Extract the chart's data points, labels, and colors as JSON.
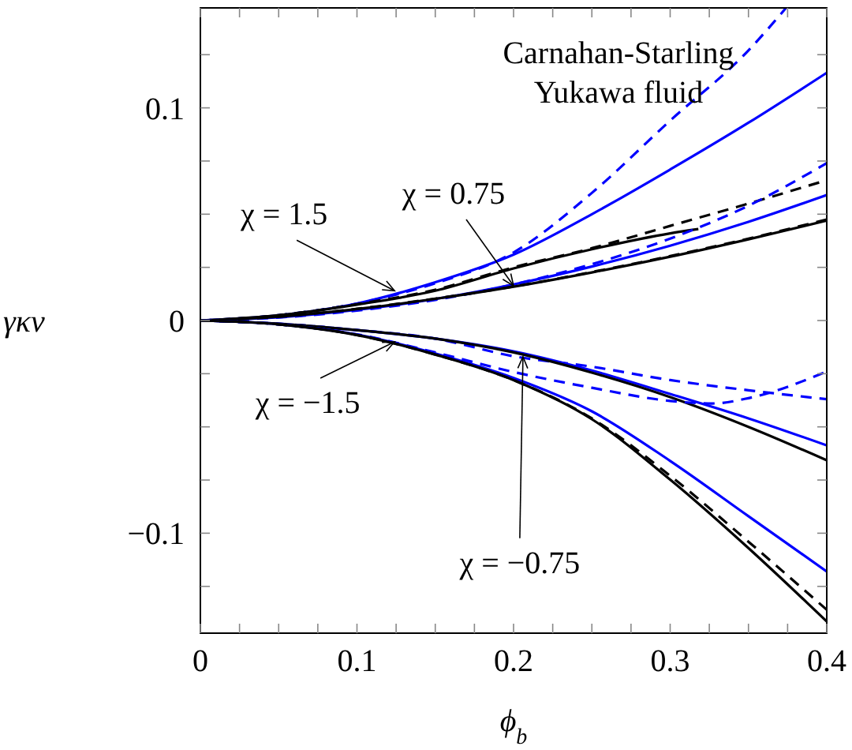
{
  "chart_data": {
    "type": "line",
    "title": "Carnahan-Starling Yukawa fluid",
    "xlabel": "ϕ$_{b}$",
    "ylabel": "γκv",
    "x": [
      0,
      0.05,
      0.1,
      0.15,
      0.2,
      0.25,
      0.3,
      0.35,
      0.4
    ],
    "xlim": [
      0,
      0.4
    ],
    "ylim": [
      -0.147,
      0.147
    ],
    "xticks": [
      0,
      {
        "value": 0.025,
        "label": null
      },
      {
        "value": 0.05,
        "label": null
      },
      {
        "value": 0.075,
        "label": null
      },
      0.1,
      {
        "value": 0.125,
        "label": null
      },
      {
        "value": 0.15,
        "label": null
      },
      {
        "value": 0.175,
        "label": null
      },
      0.2,
      {
        "value": 0.225,
        "label": null
      },
      {
        "value": 0.25,
        "label": null
      },
      {
        "value": 0.275,
        "label": null
      },
      0.3,
      {
        "value": 0.325,
        "label": null
      },
      {
        "value": 0.35,
        "label": null
      },
      {
        "value": 0.375,
        "label": null
      },
      0.4
    ],
    "yticks": [
      {
        "value": -0.125,
        "label": null
      },
      {
        "value": -0.1,
        "label": "−0.1"
      },
      {
        "value": -0.075,
        "label": null
      },
      {
        "value": -0.05,
        "label": null
      },
      {
        "value": -0.025,
        "label": null
      },
      0,
      {
        "value": 0.025,
        "label": null
      },
      {
        "value": 0.05,
        "label": null
      },
      {
        "value": 0.075,
        "label": null
      },
      0.1,
      {
        "value": 0.125,
        "label": null
      }
    ],
    "grid": false,
    "marker": "none",
    "series": [
      {
        "color": "#0000ff",
        "line_style": "dashed",
        "x": [
          0,
          0.05,
          0.1,
          0.15,
          0.2,
          0.25,
          0.3,
          0.35,
          0.374
        ],
        "values": [
          0,
          0.0025,
          0.008,
          0.0175,
          0.032,
          0.06,
          0.094,
          0.127,
          0.147
        ]
      },
      {
        "color": "#0000ff",
        "line_style": "solid",
        "values": [
          0,
          0.0025,
          0.008,
          0.018,
          0.031,
          0.05,
          0.071,
          0.093,
          0.1165
        ]
      },
      {
        "color": "#000000",
        "line_style": "dashed",
        "values": [
          0,
          0.0025,
          0.0077,
          0.0145,
          0.025,
          0.034,
          0.0445,
          0.055,
          0.066
        ]
      },
      {
        "color": "#000000",
        "line_style": "solid",
        "x": [
          0,
          0.05,
          0.1,
          0.15,
          0.2,
          0.25,
          0.3,
          0.318
        ],
        "values": [
          0,
          0.0025,
          0.0075,
          0.014,
          0.0245,
          0.0335,
          0.041,
          0.043
        ]
      },
      {
        "color": "#0000ff",
        "line_style": "dashed",
        "values": [
          0,
          0.0014,
          0.0047,
          0.0097,
          0.017,
          0.0265,
          0.0385,
          0.054,
          0.074
        ]
      },
      {
        "color": "#0000ff",
        "line_style": "solid",
        "values": [
          0,
          0.0015,
          0.005,
          0.0101,
          0.017,
          0.0254,
          0.0352,
          0.0464,
          0.059
        ]
      },
      {
        "color": "#000000",
        "line_style": "dashed",
        "values": [
          0,
          0.0018,
          0.0055,
          0.0103,
          0.016,
          0.0228,
          0.0303,
          0.0385,
          0.0475
        ]
      },
      {
        "color": "#000000",
        "line_style": "solid",
        "values": [
          0,
          0.0018,
          0.0054,
          0.0102,
          0.0159,
          0.0226,
          0.03,
          0.0382,
          0.047
        ]
      },
      {
        "color": "#0000ff",
        "line_style": "dashed",
        "values": [
          0,
          -0.0015,
          -0.0045,
          -0.0085,
          -0.0168,
          -0.0217,
          -0.028,
          -0.0328,
          -0.037
        ]
      },
      {
        "color": "#0000ff",
        "line_style": "solid",
        "values": [
          0,
          -0.0015,
          -0.0045,
          -0.0085,
          -0.0145,
          -0.0235,
          -0.0345,
          -0.046,
          -0.0587
        ]
      },
      {
        "color": "#000000",
        "line_style": "solid",
        "values": [
          0,
          -0.0015,
          -0.0045,
          -0.0085,
          -0.015,
          -0.0245,
          -0.036,
          -0.05,
          -0.0657
        ]
      },
      {
        "color": "#0000ff",
        "line_style": "dashed",
        "x": [
          0,
          0.05,
          0.1,
          0.15,
          0.2,
          0.25,
          0.3,
          0.327,
          0.35,
          0.4
        ],
        "values": [
          0,
          -0.0018,
          -0.0065,
          -0.015,
          -0.0242,
          -0.0316,
          -0.0378,
          -0.039,
          -0.0365,
          -0.024
        ]
      },
      {
        "color": "#0000ff",
        "line_style": "solid",
        "values": [
          0,
          -0.0018,
          -0.0066,
          -0.0155,
          -0.027,
          -0.0427,
          -0.066,
          -0.092,
          -0.118
        ]
      },
      {
        "color": "#000000",
        "line_style": "dashed",
        "values": [
          0,
          -0.0018,
          -0.0068,
          -0.016,
          -0.028,
          -0.046,
          -0.073,
          -0.104,
          -0.136
        ]
      },
      {
        "color": "#000000",
        "line_style": "solid",
        "values": [
          0,
          -0.0018,
          -0.0068,
          -0.016,
          -0.028,
          -0.0464,
          -0.0748,
          -0.107,
          -0.1415
        ]
      }
    ],
    "annotations": [
      {
        "text": "χ = 1.5",
        "x": 0.124,
        "y": 0.014
      },
      {
        "text": "χ = 0.75",
        "x": 0.2,
        "y": 0.0163
      },
      {
        "text": "χ = −1.5",
        "x": 0.124,
        "y": -0.01
      },
      {
        "text": "χ = −0.75",
        "x": 0.206,
        "y": -0.017
      }
    ]
  }
}
